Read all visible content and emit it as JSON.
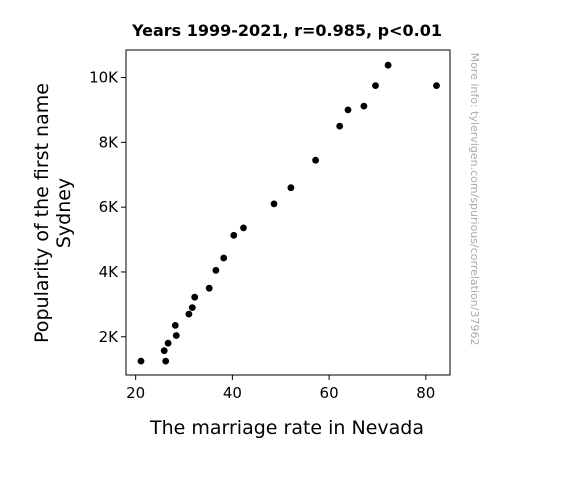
{
  "chart_data": {
    "type": "scatter",
    "title": "Years 1999-2021, r=0.985, p<0.01",
    "xlabel": "The marriage rate in Nevada",
    "ylabel_lines": [
      "Popularity of the first name",
      "Sydney"
    ],
    "side_note": "More info: tylervigen.com/spurious/correlation/37962",
    "xlim": [
      18,
      85
    ],
    "ylim": [
      820,
      10850
    ],
    "x_ticks": [
      20,
      40,
      60,
      80
    ],
    "x_tick_labels": [
      "20",
      "40",
      "60",
      "80"
    ],
    "y_ticks": [
      2000,
      4000,
      6000,
      8000,
      10000
    ],
    "y_tick_labels": [
      "2K",
      "4K",
      "6K",
      "8K",
      "10K"
    ],
    "point_color": "#000000",
    "points": [
      {
        "x": 21.1,
        "y": 1250
      },
      {
        "x": 25.9,
        "y": 1570
      },
      {
        "x": 26.2,
        "y": 1250
      },
      {
        "x": 26.7,
        "y": 1800
      },
      {
        "x": 28.2,
        "y": 2350
      },
      {
        "x": 28.4,
        "y": 2040
      },
      {
        "x": 31.0,
        "y": 2700
      },
      {
        "x": 31.7,
        "y": 2900
      },
      {
        "x": 32.2,
        "y": 3220
      },
      {
        "x": 35.2,
        "y": 3500
      },
      {
        "x": 36.6,
        "y": 4050
      },
      {
        "x": 38.2,
        "y": 4430
      },
      {
        "x": 40.3,
        "y": 5130
      },
      {
        "x": 42.3,
        "y": 5360
      },
      {
        "x": 48.6,
        "y": 6100
      },
      {
        "x": 52.1,
        "y": 6600
      },
      {
        "x": 57.2,
        "y": 7450
      },
      {
        "x": 62.2,
        "y": 8500
      },
      {
        "x": 63.9,
        "y": 9000
      },
      {
        "x": 67.2,
        "y": 9120
      },
      {
        "x": 69.6,
        "y": 9750
      },
      {
        "x": 72.2,
        "y": 10380
      },
      {
        "x": 82.2,
        "y": 9750
      }
    ]
  }
}
